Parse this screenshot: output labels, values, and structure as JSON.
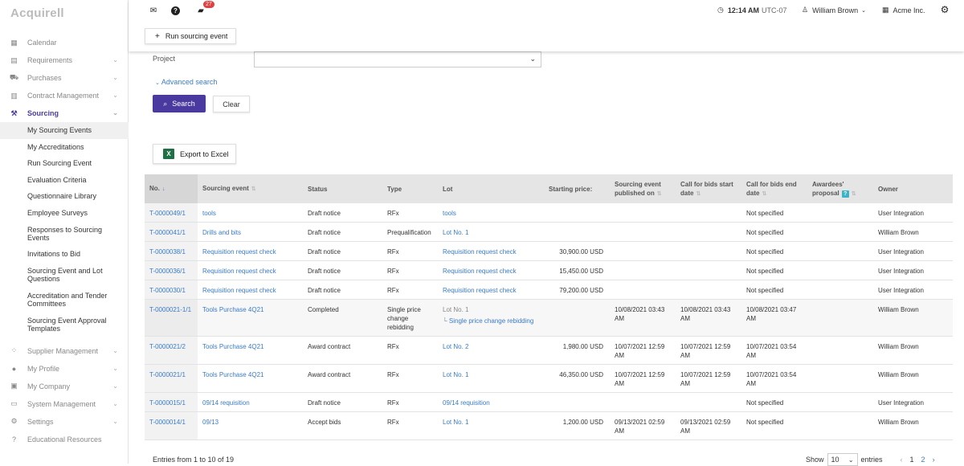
{
  "app": {
    "logo": "Acquirell"
  },
  "sidebar": {
    "items": [
      {
        "label": "Calendar",
        "icon": "calendar-icon",
        "glyph": "▦",
        "expandable": false
      },
      {
        "label": "Requirements",
        "icon": "requirements-icon",
        "glyph": "▤",
        "expandable": true
      },
      {
        "label": "Purchases",
        "icon": "cart-icon",
        "glyph": "⛟",
        "expandable": true
      },
      {
        "label": "Contract Management",
        "icon": "contract-icon",
        "glyph": "▥",
        "expandable": true
      },
      {
        "label": "Sourcing",
        "icon": "gavel-icon",
        "glyph": "⚒",
        "expandable": true,
        "active": true
      },
      {
        "label": "Supplier Management",
        "icon": "supplier-icon",
        "glyph": "⁘",
        "expandable": true
      },
      {
        "label": "My Profile",
        "icon": "profile-icon",
        "glyph": "●",
        "expandable": true
      },
      {
        "label": "My Company",
        "icon": "company-icon",
        "glyph": "▣",
        "expandable": true
      },
      {
        "label": "System Management",
        "icon": "system-icon",
        "glyph": "▭",
        "expandable": true
      },
      {
        "label": "Settings",
        "icon": "settings-icon",
        "glyph": "⚙",
        "expandable": true
      },
      {
        "label": "Educational Resources",
        "icon": "education-icon",
        "glyph": "?",
        "expandable": false
      }
    ],
    "sourcing_sub": [
      {
        "label": "My Sourcing Events",
        "selected": true
      },
      {
        "label": "My Accreditations"
      },
      {
        "label": "Run Sourcing Event"
      },
      {
        "label": "Evaluation Criteria"
      },
      {
        "label": "Questionnaire Library"
      },
      {
        "label": "Employee Surveys"
      },
      {
        "label": "Responses to Sourcing Events"
      },
      {
        "label": "Invitations to Bid"
      },
      {
        "label": "Sourcing Event and Lot Questions"
      },
      {
        "label": "Accreditation and Tender Committees"
      },
      {
        "label": "Sourcing Event Approval Templates"
      }
    ]
  },
  "topbar": {
    "badge_count": "27",
    "time": "12:14 AM",
    "timezone": "UTC-07",
    "user": "William Brown",
    "company": "Acme Inc.",
    "run_button": "Run sourcing event"
  },
  "filters": {
    "project_label": "Project",
    "project_value": "",
    "advanced_search": "Advanced search",
    "search_button": "Search",
    "clear_button": "Clear",
    "export_button": "Export to Excel"
  },
  "table": {
    "headers": [
      "No.",
      "Sourcing event",
      "Status",
      "Type",
      "Lot",
      "Starting price:",
      "Sourcing event published on",
      "Call for bids start date",
      "Call for bids end date",
      "Awardees' proposal",
      "Owner"
    ],
    "rows": [
      {
        "no": "T-0000049/1",
        "event": "tools",
        "status": "Draft notice",
        "type": "RFx",
        "lot": "tools",
        "lot_muted": false,
        "lot_sub": "",
        "price": "",
        "published": "",
        "start": "",
        "end": "Not specified",
        "awardees": "",
        "owner": "User Integration"
      },
      {
        "no": "T-0000041/1",
        "event": "Drills and bits",
        "status": "Draft notice",
        "type": "Prequalification",
        "lot": "Lot No. 1",
        "lot_muted": false,
        "lot_sub": "",
        "price": "",
        "published": "",
        "start": "",
        "end": "Not specified",
        "awardees": "",
        "owner": "William Brown"
      },
      {
        "no": "T-0000038/1",
        "event": "Requisition request check",
        "status": "Draft notice",
        "type": "RFx",
        "lot": "Requisition request check",
        "lot_muted": false,
        "lot_sub": "",
        "price": "30,900.00 USD",
        "published": "",
        "start": "",
        "end": "Not specified",
        "awardees": "",
        "owner": "User Integration"
      },
      {
        "no": "T-0000036/1",
        "event": "Requisition request check",
        "status": "Draft notice",
        "type": "RFx",
        "lot": "Requisition request check",
        "lot_muted": false,
        "lot_sub": "",
        "price": "15,450.00 USD",
        "published": "",
        "start": "",
        "end": "Not specified",
        "awardees": "",
        "owner": "User Integration"
      },
      {
        "no": "T-0000030/1",
        "event": "Requisition request check",
        "status": "Draft notice",
        "type": "RFx",
        "lot": "Requisition request check",
        "lot_muted": false,
        "lot_sub": "",
        "price": "79,200.00 USD",
        "published": "",
        "start": "",
        "end": "Not specified",
        "awardees": "",
        "owner": "User Integration"
      },
      {
        "no": "T-0000021-1/1",
        "event": "Tools Purchase 4Q21",
        "status": "Completed",
        "type": "Single price change rebidding",
        "lot": "Lot No. 1",
        "lot_muted": true,
        "lot_sub": "Single price change rebidding",
        "price": "",
        "published": "10/08/2021 03:43 AM",
        "start": "10/08/2021 03:43 AM",
        "end": "10/08/2021 03:47 AM",
        "awardees": "",
        "owner": "William Brown"
      },
      {
        "no": "T-0000021/2",
        "event": "Tools Purchase 4Q21",
        "status": "Award contract",
        "type": "RFx",
        "lot": "Lot No. 2",
        "lot_muted": false,
        "lot_sub": "",
        "price": "1,980.00 USD",
        "published": "10/07/2021 12:59 AM",
        "start": "10/07/2021 12:59 AM",
        "end": "10/07/2021 03:54 AM",
        "awardees": "",
        "owner": "William Brown"
      },
      {
        "no": "T-0000021/1",
        "event": "Tools Purchase 4Q21",
        "status": "Award contract",
        "type": "RFx",
        "lot": "Lot No. 1",
        "lot_muted": false,
        "lot_sub": "",
        "price": "46,350.00 USD",
        "published": "10/07/2021 12:59 AM",
        "start": "10/07/2021 12:59 AM",
        "end": "10/07/2021 03:54 AM",
        "awardees": "",
        "owner": "William Brown"
      },
      {
        "no": "T-0000015/1",
        "event": "09/14 requisition",
        "status": "Draft notice",
        "type": "RFx",
        "lot": "09/14 requisition",
        "lot_muted": false,
        "lot_sub": "",
        "price": "",
        "published": "",
        "start": "",
        "end": "Not specified",
        "awardees": "",
        "owner": "User Integration"
      },
      {
        "no": "T-0000014/1",
        "event": "09/13",
        "status": "Accept bids",
        "type": "RFx",
        "lot": "Lot No. 1",
        "lot_muted": false,
        "lot_sub": "",
        "price": "1,200.00 USD",
        "published": "09/13/2021 02:59 AM",
        "start": "09/13/2021 02:59 AM",
        "end": "Not specified",
        "awardees": "",
        "owner": "William Brown"
      }
    ]
  },
  "footer": {
    "entries_info": "Entries from 1 to 10 of 19",
    "show_label": "Show",
    "page_size": "10",
    "entries_label": "entries",
    "prev": "‹",
    "pages": [
      "1",
      "2"
    ],
    "next": "›"
  }
}
